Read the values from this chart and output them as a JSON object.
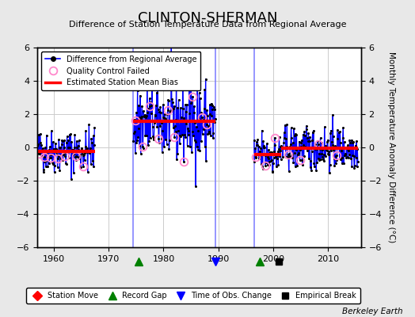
{
  "title": "CLINTON-SHERMAN",
  "subtitle": "Difference of Station Temperature Data from Regional Average",
  "ylabel": "Monthly Temperature Anomaly Difference (°C)",
  "xlabel_credit": "Berkeley Earth",
  "xlim": [
    1957,
    2016
  ],
  "ylim": [
    -6,
    6
  ],
  "yticks": [
    -6,
    -4,
    -2,
    0,
    2,
    4,
    6
  ],
  "xticks": [
    1960,
    1970,
    1980,
    1990,
    2000,
    2010
  ],
  "background_color": "#e8e8e8",
  "plot_bg_color": "#ffffff",
  "grid_color": "#cccccc",
  "segments": [
    {
      "x_start": 1957.0,
      "x_end": 1967.5,
      "bias": -0.22
    },
    {
      "x_start": 1974.5,
      "x_end": 1989.5,
      "bias": 1.55
    },
    {
      "x_start": 1996.5,
      "x_end": 2001.5,
      "bias": -0.45
    },
    {
      "x_start": 2001.5,
      "x_end": 2015.5,
      "bias": -0.05
    }
  ],
  "vertical_lines": [
    {
      "x": 1974.5,
      "color": "#aaaaff"
    },
    {
      "x": 1989.5,
      "color": "#aaaaff"
    },
    {
      "x": 1996.5,
      "color": "#aaaaff"
    }
  ],
  "record_gaps": [
    1975.5,
    1997.5
  ],
  "obs_change_markers": [
    1989.5
  ],
  "empirical_breaks": [
    2001.0
  ],
  "station_moves": [],
  "seed": 42,
  "qc1_idx": [
    5,
    15,
    30,
    45,
    60,
    85,
    100
  ],
  "qc2_idx": [
    5,
    20,
    35,
    55,
    75,
    90,
    110,
    130,
    150,
    160
  ],
  "qc3_idx": [
    3,
    25,
    45
  ],
  "qc4_idx": [
    15,
    40,
    80,
    120
  ]
}
